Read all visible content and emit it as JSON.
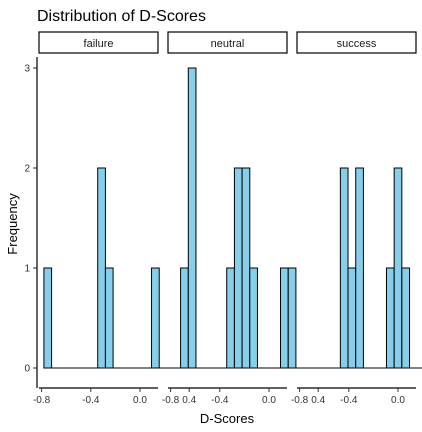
{
  "chart_data": {
    "type": "bar",
    "title": "Distribution of D-Scores",
    "xlabel": "D-Scores",
    "ylabel": "Frequency",
    "xlim": [
      -0.8,
      0.5
    ],
    "ylim": [
      0,
      3
    ],
    "x_ticks": [
      -0.8,
      -0.4,
      0.0,
      0.4
    ],
    "x_tick_labels": [
      "-0.8",
      "-0.4",
      "0.0",
      "0.4"
    ],
    "y_ticks": [
      0,
      1,
      2,
      3
    ],
    "y_tick_labels": [
      "0",
      "1",
      "2",
      "3"
    ],
    "bin_width": 0.0625,
    "bin_centers": [
      -0.75,
      -0.6875,
      -0.625,
      -0.5625,
      -0.5,
      -0.4375,
      -0.375,
      -0.3125,
      -0.25,
      -0.1875,
      -0.125,
      -0.0625,
      0.0,
      0.0625,
      0.125,
      0.1875,
      0.25,
      0.3125,
      0.375,
      0.4375
    ],
    "fill_color": "#87CEEB",
    "panels": [
      {
        "name": "failure",
        "counts": [
          1,
          0,
          0,
          0,
          0,
          0,
          0,
          2,
          1,
          0,
          0,
          0,
          0,
          0,
          1,
          0,
          0,
          0,
          0,
          0
        ]
      },
      {
        "name": "neutral",
        "counts": [
          0,
          1,
          3,
          0,
          0,
          0,
          0,
          1,
          2,
          2,
          1,
          0,
          0,
          0,
          1,
          1,
          0,
          0,
          0,
          0
        ]
      },
      {
        "name": "success",
        "counts": [
          0,
          0,
          0,
          0,
          0,
          2,
          1,
          2,
          0,
          0,
          0,
          1,
          2,
          1,
          0,
          0,
          0,
          0,
          0,
          0
        ]
      }
    ]
  }
}
